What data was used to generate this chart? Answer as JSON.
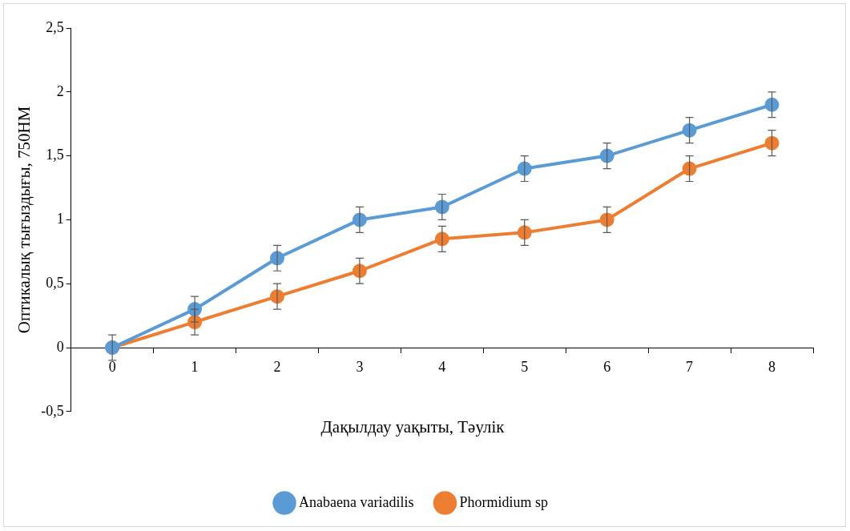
{
  "chart_data": {
    "type": "line",
    "xlabel": "Дақылдау уақыты, Тәулік",
    "ylabel": "Оптикалық тығыздығы, 750НМ",
    "categories": [
      "0",
      "1",
      "2",
      "3",
      "4",
      "5",
      "6",
      "7",
      "8"
    ],
    "series": [
      {
        "name": "Anabaena variadilis",
        "color": "#5b9bd5",
        "values": [
          0,
          0.3,
          0.7,
          1.0,
          1.1,
          1.4,
          1.5,
          1.7,
          1.9
        ],
        "errors": [
          0.1,
          0.1,
          0.1,
          0.1,
          0.1,
          0.1,
          0.1,
          0.1,
          0.1
        ]
      },
      {
        "name": "Phormidium sp",
        "color": "#ed7d31",
        "values": [
          0,
          0.2,
          0.4,
          0.6,
          0.85,
          0.9,
          1.0,
          1.4,
          1.6
        ],
        "errors": [
          null,
          0.1,
          0.1,
          0.1,
          0.1,
          0.1,
          0.1,
          0.1,
          0.1
        ]
      }
    ],
    "ylim": [
      -0.5,
      2.5
    ],
    "yticks": [
      {
        "value": -0.5,
        "label": "-0,5"
      },
      0,
      {
        "value": 0.5,
        "label": "0,5"
      },
      1,
      {
        "value": 1.5,
        "label": "1,5"
      },
      2,
      {
        "value": 2.5,
        "label": "2,5"
      }
    ],
    "grid": false,
    "legend": "bottom",
    "marker": "circle",
    "line_style": "solid"
  }
}
